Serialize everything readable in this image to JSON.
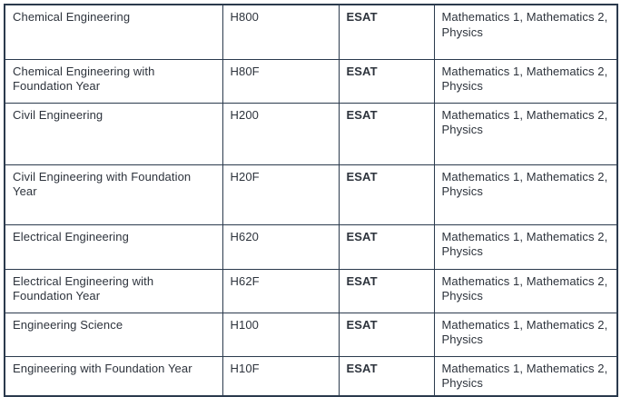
{
  "page": {
    "background": "#ffffff"
  },
  "colors": {
    "border": "#2b3a4d",
    "text": "#2d333c",
    "test_accent": "#9d3a96"
  },
  "table": {
    "rows": [
      {
        "course": "Chemical Engineering",
        "code": "H800",
        "test": "ESAT",
        "subjects": "Mathematics 1, Mathematics 2, Physics"
      },
      {
        "course": "Chemical Engineering with Foundation Year",
        "code": "H80F",
        "test": "ESAT",
        "subjects": "Mathematics 1, Mathematics 2, Physics"
      },
      {
        "course": "Civil Engineering",
        "code": "H200",
        "test": "ESAT",
        "subjects": "Mathematics 1, Mathematics 2, Physics"
      },
      {
        "course": "Civil Engineering with Foundation Year",
        "code": "H20F",
        "test": "ESAT",
        "subjects": "Mathematics 1, Mathematics 2, Physics"
      },
      {
        "course": "Electrical Engineering",
        "code": "H620",
        "test": "ESAT",
        "subjects": "Mathematics 1, Mathematics 2, Physics"
      },
      {
        "course": "Electrical Engineering with Foundation Year",
        "code": "H62F",
        "test": "ESAT",
        "subjects": "Mathematics 1, Mathematics 2, Physics"
      },
      {
        "course": "Engineering Science",
        "code": "H100",
        "test": "ESAT",
        "subjects": "Mathematics 1, Mathematics 2, Physics"
      },
      {
        "course": "Engineering with Foundation Year",
        "code": "H10F",
        "test": "ESAT",
        "subjects": "Mathematics 1, Mathematics 2, Physics"
      }
    ]
  }
}
